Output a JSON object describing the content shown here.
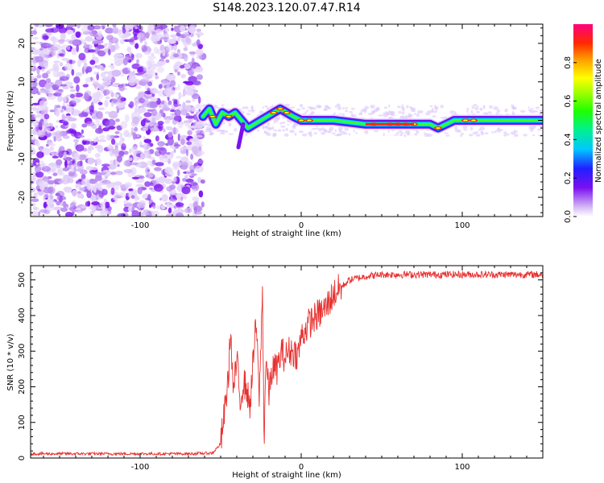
{
  "title": "S148.2023.120.07.47.R14",
  "chart_data": [
    {
      "type": "heatmap",
      "description_of_axes": "spectrogram",
      "xlabel": "Height of straight line (km)",
      "ylabel": "Frequency (Hz)",
      "xlim": [
        -168,
        150
      ],
      "ylim": [
        -25,
        25
      ],
      "xticks": [
        -100,
        0,
        100
      ],
      "yticks": [
        -20,
        -10,
        0,
        10,
        20
      ],
      "noise_region_x": [
        -168,
        -61
      ],
      "ridge": {
        "x": [
          -61,
          -57,
          -53,
          -49,
          -45,
          -41,
          -37,
          -33,
          -29,
          -25,
          -21,
          -17,
          -13,
          -9,
          -5,
          0,
          10,
          20,
          40,
          60,
          70,
          80,
          85,
          90,
          95,
          100,
          110,
          120,
          130,
          140,
          150
        ],
        "freq": [
          1,
          3,
          -1,
          2,
          1,
          2,
          0,
          -2,
          -1,
          0,
          1,
          2,
          3,
          2,
          1,
          0,
          0,
          0,
          -1,
          -1,
          -1,
          -1,
          -2,
          -1,
          0,
          0,
          0,
          0,
          0,
          0,
          0
        ]
      },
      "colorbar": {
        "label": "Normalized spectral amplitude",
        "ticks": [
          0.0,
          0.2,
          0.4,
          0.6,
          0.8
        ],
        "range": [
          0,
          1
        ]
      }
    },
    {
      "type": "line",
      "xlabel": "Height of straight line (km)",
      "ylabel": "SNR (10 * v/v)",
      "xlim": [
        -168,
        150
      ],
      "ylim": [
        0,
        540
      ],
      "xticks": [
        -100,
        0,
        100
      ],
      "yticks": [
        0,
        100,
        200,
        300,
        400,
        500
      ],
      "color": "#e8302f",
      "series": [
        {
          "x": [
            -168,
            -150,
            -130,
            -110,
            -90,
            -70,
            -55,
            -50,
            -47,
            -45,
            -44,
            -42,
            -40,
            -38,
            -36,
            -34,
            -32,
            -30,
            -28,
            -26,
            -24,
            -23,
            -22,
            -20,
            -18,
            -15,
            -12,
            -10,
            -8,
            -5,
            -2,
            0,
            5,
            10,
            15,
            20,
            25,
            30,
            40,
            50,
            60,
            80,
            100,
            120,
            150
          ],
          "y": [
            12,
            12,
            12,
            12,
            12,
            12,
            14,
            40,
            150,
            240,
            360,
            180,
            280,
            160,
            210,
            200,
            140,
            260,
            380,
            170,
            470,
            30,
            280,
            180,
            250,
            250,
            300,
            280,
            300,
            300,
            290,
            340,
            380,
            400,
            420,
            460,
            480,
            500,
            510,
            515,
            515,
            515,
            515,
            515,
            515
          ]
        }
      ]
    }
  ]
}
